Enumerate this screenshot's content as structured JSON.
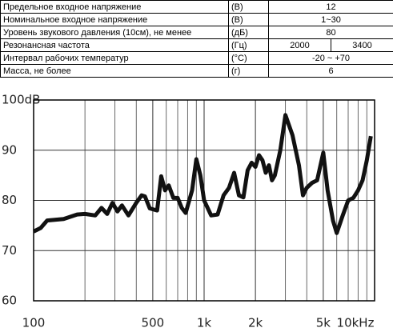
{
  "table": {
    "rows": [
      [
        "Предельное входное напряжение",
        "(В)",
        "12"
      ],
      [
        "Номинальное входное напряжение",
        "(В)",
        "1~30"
      ],
      [
        "Уровень звукового давления (10см), не менее",
        "(дБ)",
        "80"
      ],
      [
        "Резонансная частота",
        "(Гц)",
        "2000",
        "3400"
      ],
      [
        "Интервал рабочих температур",
        "(°С)",
        "-20 ~ +70"
      ],
      [
        "Масса, не более",
        "(г)",
        "6"
      ]
    ]
  },
  "chart_data": {
    "type": "line",
    "log_x": true,
    "grid": true,
    "color": "#111111",
    "xlim": [
      100,
      10000
    ],
    "ylim": [
      60,
      100
    ],
    "xticks": [
      100,
      500,
      {
        "value": 1000,
        "label": "1k"
      },
      {
        "value": 2000,
        "label": "2k"
      },
      {
        "value": 5000,
        "label": "5k"
      },
      {
        "value": 10000,
        "label": "10kHz"
      }
    ],
    "x_minor_ticks": [
      200,
      300,
      400,
      600,
      700,
      800,
      900,
      3000,
      4000,
      6000,
      7000,
      8000,
      9000
    ],
    "yticks": [
      60,
      70,
      80,
      90,
      {
        "value": 100,
        "label": "100dB"
      }
    ],
    "x": [
      100,
      110,
      120,
      150,
      180,
      200,
      230,
      250,
      270,
      290,
      310,
      330,
      360,
      400,
      430,
      450,
      480,
      530,
      560,
      590,
      620,
      660,
      700,
      740,
      780,
      850,
      900,
      950,
      1000,
      1100,
      1200,
      1300,
      1400,
      1500,
      1600,
      1700,
      1800,
      1900,
      2000,
      2100,
      2200,
      2300,
      2400,
      2500,
      2600,
      2800,
      3000,
      3300,
      3600,
      3800,
      4000,
      4300,
      4600,
      5000,
      5300,
      5700,
      6000,
      6500,
      7000,
      7500,
      8000,
      8500,
      9000,
      9500
    ],
    "values": [
      73.8,
      74.5,
      76,
      76.3,
      77.2,
      77.3,
      77,
      78.5,
      77.3,
      79.5,
      77.8,
      79,
      77,
      79.5,
      81,
      80.8,
      78.4,
      78,
      84.8,
      82,
      83,
      80.5,
      80.5,
      78.5,
      77.5,
      82,
      88.2,
      85,
      80,
      77,
      77.2,
      81,
      82.5,
      85.5,
      81,
      80.6,
      86,
      87.5,
      86.7,
      89,
      88,
      85.5,
      87,
      84,
      85,
      90,
      97,
      93,
      87,
      81,
      82.5,
      83.5,
      84,
      89.5,
      82,
      76,
      73.5,
      77,
      80,
      80.5,
      82,
      84,
      88,
      92.8
    ]
  }
}
